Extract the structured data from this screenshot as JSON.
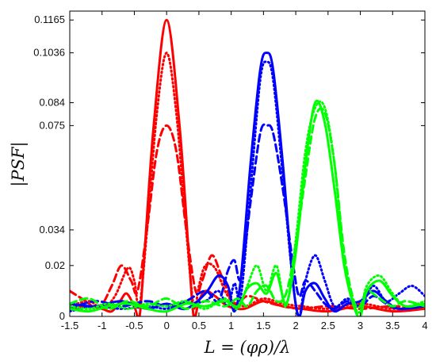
{
  "chart_data": {
    "type": "line",
    "title": "",
    "xlabel": "L = (φρ)/λ",
    "ylabel": "|PSF|",
    "xlim": [
      -1.5,
      4
    ],
    "ylim": [
      0,
      0.12
    ],
    "xticks": [
      -1.5,
      -1,
      -0.5,
      0,
      0.5,
      1,
      1.5,
      2,
      2.5,
      3,
      3.5,
      4
    ],
    "xtick_labels": [
      "-1.5",
      "-1",
      "-0.5",
      "0",
      "0.5",
      "1",
      "1.5",
      "2",
      "2.5",
      "3",
      "3.5",
      "4"
    ],
    "yticks": [
      0,
      0.02,
      0.034,
      0.075,
      0.084,
      0.1036,
      0.1165
    ],
    "ytick_labels": [
      "0",
      "0.02",
      "0.034",
      "0.075",
      "0.084",
      "0.1036",
      "0.1165"
    ],
    "grid": false,
    "colors": {
      "red": "#ff0000",
      "blue": "#0000ff",
      "green": "#00ff00",
      "axis": "#000000"
    },
    "series": [
      {
        "color": "red",
        "style": "solid",
        "x": [
          -1.5,
          -1.2,
          -1.0,
          -0.85,
          -0.72,
          -0.62,
          -0.5,
          -0.42,
          -0.35,
          -0.2,
          0.0,
          0.2,
          0.35,
          0.42,
          0.5,
          0.6,
          0.75,
          0.95,
          1.2,
          1.5,
          1.8,
          2.1,
          2.5,
          3.0,
          3.5,
          4.0
        ],
        "y": [
          0.003,
          0.004,
          0.003,
          0.002,
          0.006,
          0.009,
          0.004,
          0.0,
          0.022,
          0.075,
          0.1165,
          0.075,
          0.022,
          0.0,
          0.006,
          0.01,
          0.008,
          0.004,
          0.003,
          0.006,
          0.004,
          0.003,
          0.002,
          0.004,
          0.002,
          0.003
        ]
      },
      {
        "color": "red",
        "style": "dotted",
        "x": [
          -1.5,
          -1.2,
          -1.0,
          -0.8,
          -0.6,
          -0.5,
          -0.42,
          -0.3,
          -0.15,
          0.0,
          0.15,
          0.3,
          0.42,
          0.5,
          0.6,
          0.75,
          0.95,
          1.2,
          1.5,
          1.8,
          2.1,
          2.5,
          3.0,
          3.5,
          4.0
        ],
        "y": [
          0.004,
          0.006,
          0.003,
          0.008,
          0.019,
          0.014,
          0.004,
          0.035,
          0.08,
          0.1036,
          0.08,
          0.035,
          0.004,
          0.012,
          0.02,
          0.019,
          0.008,
          0.004,
          0.007,
          0.005,
          0.004,
          0.003,
          0.005,
          0.003,
          0.004
        ]
      },
      {
        "color": "red",
        "style": "dashed",
        "x": [
          -1.5,
          -1.25,
          -1.05,
          -0.85,
          -0.7,
          -0.55,
          -0.45,
          -0.3,
          -0.15,
          0.0,
          0.15,
          0.3,
          0.45,
          0.55,
          0.7,
          0.85,
          1.05,
          1.25,
          1.5,
          1.8,
          2.1,
          2.5,
          3.0,
          3.5,
          4.0
        ],
        "y": [
          0.01,
          0.006,
          0.003,
          0.012,
          0.02,
          0.014,
          0.01,
          0.035,
          0.065,
          0.075,
          0.065,
          0.035,
          0.01,
          0.014,
          0.024,
          0.016,
          0.005,
          0.008,
          0.006,
          0.004,
          0.003,
          0.004,
          0.003,
          0.004,
          0.003
        ]
      },
      {
        "color": "blue",
        "style": "solid",
        "x": [
          -1.5,
          -1.1,
          -0.7,
          -0.3,
          0.0,
          0.3,
          0.6,
          0.8,
          0.95,
          1.05,
          1.15,
          1.3,
          1.45,
          1.55,
          1.65,
          1.8,
          1.95,
          2.05,
          2.15,
          2.3,
          2.45,
          2.6,
          2.8,
          3.0,
          3.2,
          3.4,
          3.6,
          4.0
        ],
        "y": [
          0.005,
          0.004,
          0.006,
          0.003,
          0.005,
          0.003,
          0.009,
          0.016,
          0.012,
          0.002,
          0.015,
          0.06,
          0.097,
          0.1036,
          0.097,
          0.06,
          0.015,
          0.0,
          0.01,
          0.013,
          0.007,
          0.002,
          0.005,
          0.006,
          0.01,
          0.006,
          0.003,
          0.004
        ]
      },
      {
        "color": "blue",
        "style": "dashed",
        "x": [
          -1.5,
          -1.1,
          -0.7,
          -0.3,
          0.0,
          0.3,
          0.6,
          0.8,
          0.95,
          1.05,
          1.15,
          1.3,
          1.45,
          1.55,
          1.65,
          1.8,
          1.95,
          2.05,
          2.15,
          2.3,
          2.45,
          2.6,
          2.8,
          3.0,
          3.2,
          3.4,
          3.6,
          4.0
        ],
        "y": [
          0.003,
          0.006,
          0.004,
          0.006,
          0.004,
          0.006,
          0.01,
          0.006,
          0.018,
          0.022,
          0.015,
          0.045,
          0.072,
          0.075,
          0.072,
          0.05,
          0.022,
          0.008,
          0.014,
          0.01,
          0.005,
          0.003,
          0.006,
          0.004,
          0.008,
          0.005,
          0.003,
          0.004
        ]
      },
      {
        "color": "blue",
        "style": "dotted",
        "x": [
          -1.5,
          -1.1,
          -0.7,
          -0.3,
          0.0,
          0.3,
          0.6,
          0.8,
          0.95,
          1.05,
          1.15,
          1.3,
          1.45,
          1.55,
          1.65,
          1.8,
          1.95,
          2.05,
          2.15,
          2.3,
          2.45,
          2.6,
          2.8,
          3.0,
          3.2,
          3.4,
          3.6,
          3.8,
          4.0
        ],
        "y": [
          0.002,
          0.004,
          0.003,
          0.004,
          0.003,
          0.005,
          0.006,
          0.01,
          0.004,
          0.013,
          0.008,
          0.05,
          0.093,
          0.1,
          0.093,
          0.055,
          0.015,
          0.0,
          0.014,
          0.024,
          0.014,
          0.004,
          0.007,
          0.004,
          0.012,
          0.006,
          0.009,
          0.012,
          0.008
        ]
      },
      {
        "color": "green",
        "style": "solid",
        "x": [
          -1.5,
          -1.2,
          -0.9,
          -0.6,
          -0.3,
          0.0,
          0.3,
          0.6,
          0.9,
          1.1,
          1.25,
          1.4,
          1.55,
          1.7,
          1.85,
          2.0,
          2.15,
          2.3,
          2.45,
          2.6,
          2.75,
          2.9,
          3.0,
          3.1,
          3.3,
          3.5,
          3.7,
          4.0
        ],
        "y": [
          0.003,
          0.002,
          0.004,
          0.005,
          0.003,
          0.002,
          0.005,
          0.004,
          0.006,
          0.004,
          0.011,
          0.013,
          0.009,
          0.017,
          0.005,
          0.025,
          0.06,
          0.084,
          0.076,
          0.05,
          0.02,
          0.004,
          0.0,
          0.01,
          0.014,
          0.008,
          0.004,
          0.005
        ]
      },
      {
        "color": "green",
        "style": "dashed",
        "x": [
          -1.5,
          -1.2,
          -0.9,
          -0.6,
          -0.3,
          0.0,
          0.3,
          0.6,
          0.9,
          1.1,
          1.25,
          1.4,
          1.55,
          1.7,
          1.85,
          2.0,
          2.15,
          2.3,
          2.45,
          2.6,
          2.75,
          2.9,
          3.0,
          3.1,
          3.3,
          3.5,
          3.7,
          4.0
        ],
        "y": [
          0.005,
          0.007,
          0.003,
          0.006,
          0.004,
          0.007,
          0.003,
          0.006,
          0.004,
          0.007,
          0.004,
          0.01,
          0.012,
          0.006,
          0.009,
          0.028,
          0.055,
          0.078,
          0.08,
          0.06,
          0.025,
          0.006,
          0.004,
          0.01,
          0.007,
          0.004,
          0.006,
          0.004
        ]
      },
      {
        "color": "green",
        "style": "dotted",
        "x": [
          -1.5,
          -1.2,
          -0.9,
          -0.6,
          -0.3,
          0.0,
          0.3,
          0.6,
          0.9,
          1.1,
          1.25,
          1.4,
          1.55,
          1.7,
          1.85,
          2.0,
          2.15,
          2.3,
          2.45,
          2.6,
          2.75,
          2.9,
          3.0,
          3.1,
          3.3,
          3.5,
          3.7,
          4.0
        ],
        "y": [
          0.004,
          0.003,
          0.005,
          0.003,
          0.005,
          0.004,
          0.006,
          0.003,
          0.007,
          0.003,
          0.012,
          0.02,
          0.01,
          0.02,
          0.004,
          0.03,
          0.065,
          0.082,
          0.082,
          0.06,
          0.022,
          0.005,
          0.002,
          0.012,
          0.016,
          0.009,
          0.004,
          0.006
        ]
      }
    ]
  }
}
